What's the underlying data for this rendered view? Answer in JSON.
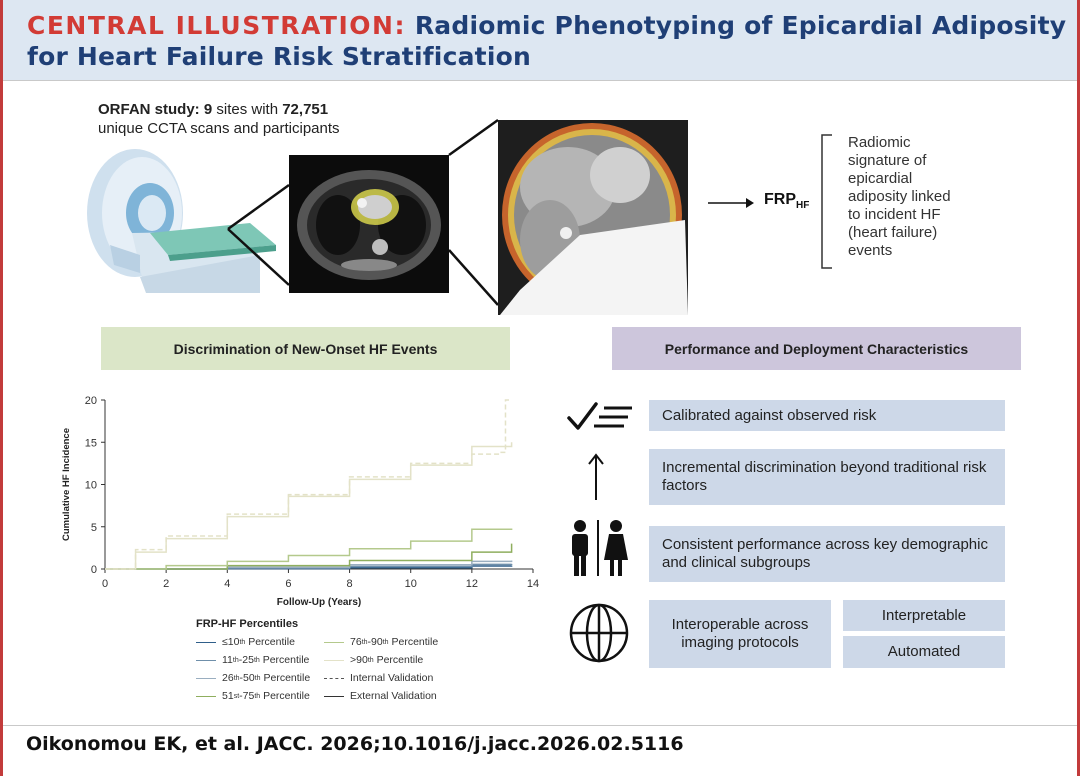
{
  "header": {
    "label": "CENTRAL ILLUSTRATION:",
    "title_line1": "Radiomic Phenotyping of Epicardial Adiposity",
    "title_line2": "for Heart Failure Risk Stratification"
  },
  "study": {
    "prefix": "ORFAN study:",
    "sites_count": "9",
    "sites_text": "sites with",
    "scans_count": "72,751",
    "line2": "unique CCTA scans and participants"
  },
  "signature": {
    "arrow_label_main": "FRP",
    "arrow_label_sub": "HF",
    "text": "Radiomic signature of epicardial adiposity linked to incident HF (heart failure) events"
  },
  "left_section": {
    "heading": "Discrimination of New-Onset HF Events"
  },
  "right_section": {
    "heading": "Performance and Deployment Characteristics",
    "items": [
      {
        "icon": "checklist-icon",
        "text": "Calibrated against observed risk"
      },
      {
        "icon": "up-arrow-icon",
        "text": "Incremental discrimination beyond traditional risk factors"
      },
      {
        "icon": "people-icon",
        "text": "Consistent performance across key demographic and clinical subgroups"
      },
      {
        "icon": "globe-icon",
        "text": "Interoperable across imaging protocols"
      }
    ],
    "interpretable": "Interpretable",
    "automated": "Automated"
  },
  "legend": {
    "title": "FRP-HF Percentiles",
    "p10": "Percentile",
    "p11_25": "Percentile",
    "p26_50": "Percentile",
    "p51_75": "Percentile",
    "p76_90": "Percentile",
    "p90": "Percentile",
    "internal": "Internal Validation",
    "external": "External Validation"
  },
  "chart_data": {
    "type": "line",
    "xlabel": "Follow-Up (Years)",
    "ylabel": "Cumulative HF Incidence",
    "xlim": [
      0,
      14
    ],
    "ylim": [
      0,
      20
    ],
    "xticks": [
      0,
      2,
      4,
      6,
      8,
      10,
      12,
      14
    ],
    "yticks": [
      0,
      5,
      10,
      15,
      20
    ],
    "series": [
      {
        "name": "≤10th Percentile",
        "color": "#2f5f8a",
        "dash": false,
        "x": [
          0,
          4,
          8,
          12,
          13.3
        ],
        "y": [
          0,
          0.05,
          0.15,
          0.35,
          0.4
        ]
      },
      {
        "name": "11th-25th Percentile",
        "color": "#6f8faa",
        "dash": false,
        "x": [
          0,
          4,
          8,
          12,
          13.3
        ],
        "y": [
          0,
          0.1,
          0.3,
          0.55,
          0.6
        ]
      },
      {
        "name": "26th-50th Percentile",
        "color": "#9aaec0",
        "dash": false,
        "x": [
          0,
          4,
          8,
          12,
          13.3
        ],
        "y": [
          0,
          0.2,
          0.5,
          0.9,
          1.0
        ]
      },
      {
        "name": "51st-75th Percentile",
        "color": "#8fae5e",
        "dash": false,
        "x": [
          0,
          4,
          8,
          12,
          13.3
        ],
        "y": [
          0,
          0.4,
          1.0,
          2.0,
          3.0
        ]
      },
      {
        "name": "76th-90th Percentile",
        "color": "#b4c98c",
        "dash": false,
        "x": [
          0,
          2,
          4,
          6,
          8,
          10,
          12,
          13.3
        ],
        "y": [
          0,
          0.4,
          0.9,
          1.6,
          2.4,
          3.3,
          4.7,
          4.8
        ]
      },
      {
        "name": ">90th Percentile",
        "color": "#e3e2c8",
        "dash": false,
        "x": [
          0,
          1,
          2,
          4,
          6,
          8,
          10,
          12,
          13.3
        ],
        "y": [
          0,
          2.0,
          3.6,
          6.2,
          8.6,
          10.6,
          12.3,
          14.5,
          15.0
        ]
      },
      {
        "name": "Internal Validation",
        "color": "#e3e2c8",
        "dash": true,
        "x": [
          0,
          1,
          2,
          4,
          6,
          8,
          10,
          12,
          12.9,
          13.1,
          13.3
        ],
        "y": [
          0,
          2.3,
          3.9,
          6.5,
          8.8,
          10.9,
          12.5,
          13.6,
          13.8,
          20.0,
          20.0
        ]
      }
    ]
  },
  "citation": "Oikonomou EK, et al. JACC. 2026;10.1016/j.jacc.2026.02.5116"
}
